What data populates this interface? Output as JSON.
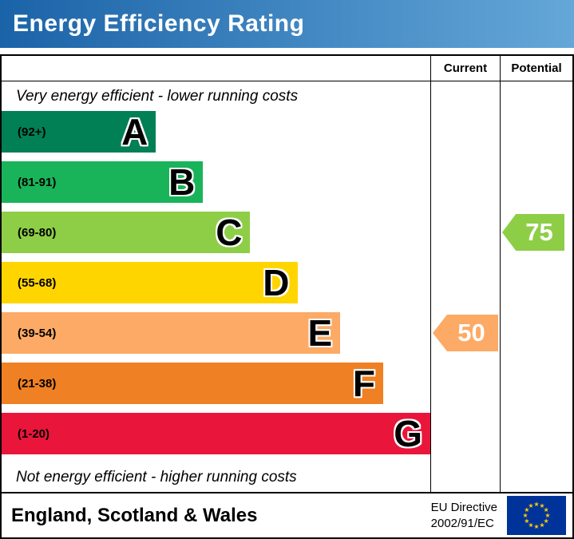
{
  "header": {
    "title": "Energy Efficiency Rating",
    "gradient_from": "#1b63a8",
    "gradient_to": "#64a7d8"
  },
  "table": {
    "current_label": "Current",
    "potential_label": "Potential"
  },
  "captions": {
    "top": "Very energy efficient - lower running costs",
    "bottom": "Not energy efficient - higher running costs"
  },
  "chart_data": {
    "type": "bar",
    "title": "Energy Efficiency Rating",
    "bands": [
      {
        "letter": "A",
        "range": "(92+)",
        "color": "#008054",
        "width_pct": 36
      },
      {
        "letter": "B",
        "range": "(81-91)",
        "color": "#19b459",
        "width_pct": 47
      },
      {
        "letter": "C",
        "range": "(69-80)",
        "color": "#8dce46",
        "width_pct": 58
      },
      {
        "letter": "D",
        "range": "(55-68)",
        "color": "#ffd500",
        "width_pct": 69
      },
      {
        "letter": "E",
        "range": "(39-54)",
        "color": "#fcaa65",
        "width_pct": 79
      },
      {
        "letter": "F",
        "range": "(21-38)",
        "color": "#ef8023",
        "width_pct": 89
      },
      {
        "letter": "G",
        "range": "(1-20)",
        "color": "#e9153b",
        "width_pct": 100
      }
    ],
    "current": {
      "value": 50,
      "band": "E",
      "color": "#fcaa65"
    },
    "potential": {
      "value": 75,
      "band": "C",
      "color": "#8dce46"
    }
  },
  "footer": {
    "region": "England, Scotland & Wales",
    "directive_line1": "EU Directive",
    "directive_line2": "2002/91/EC",
    "flag": {
      "field_color": "#003399",
      "star_color": "#ffcc00"
    }
  }
}
